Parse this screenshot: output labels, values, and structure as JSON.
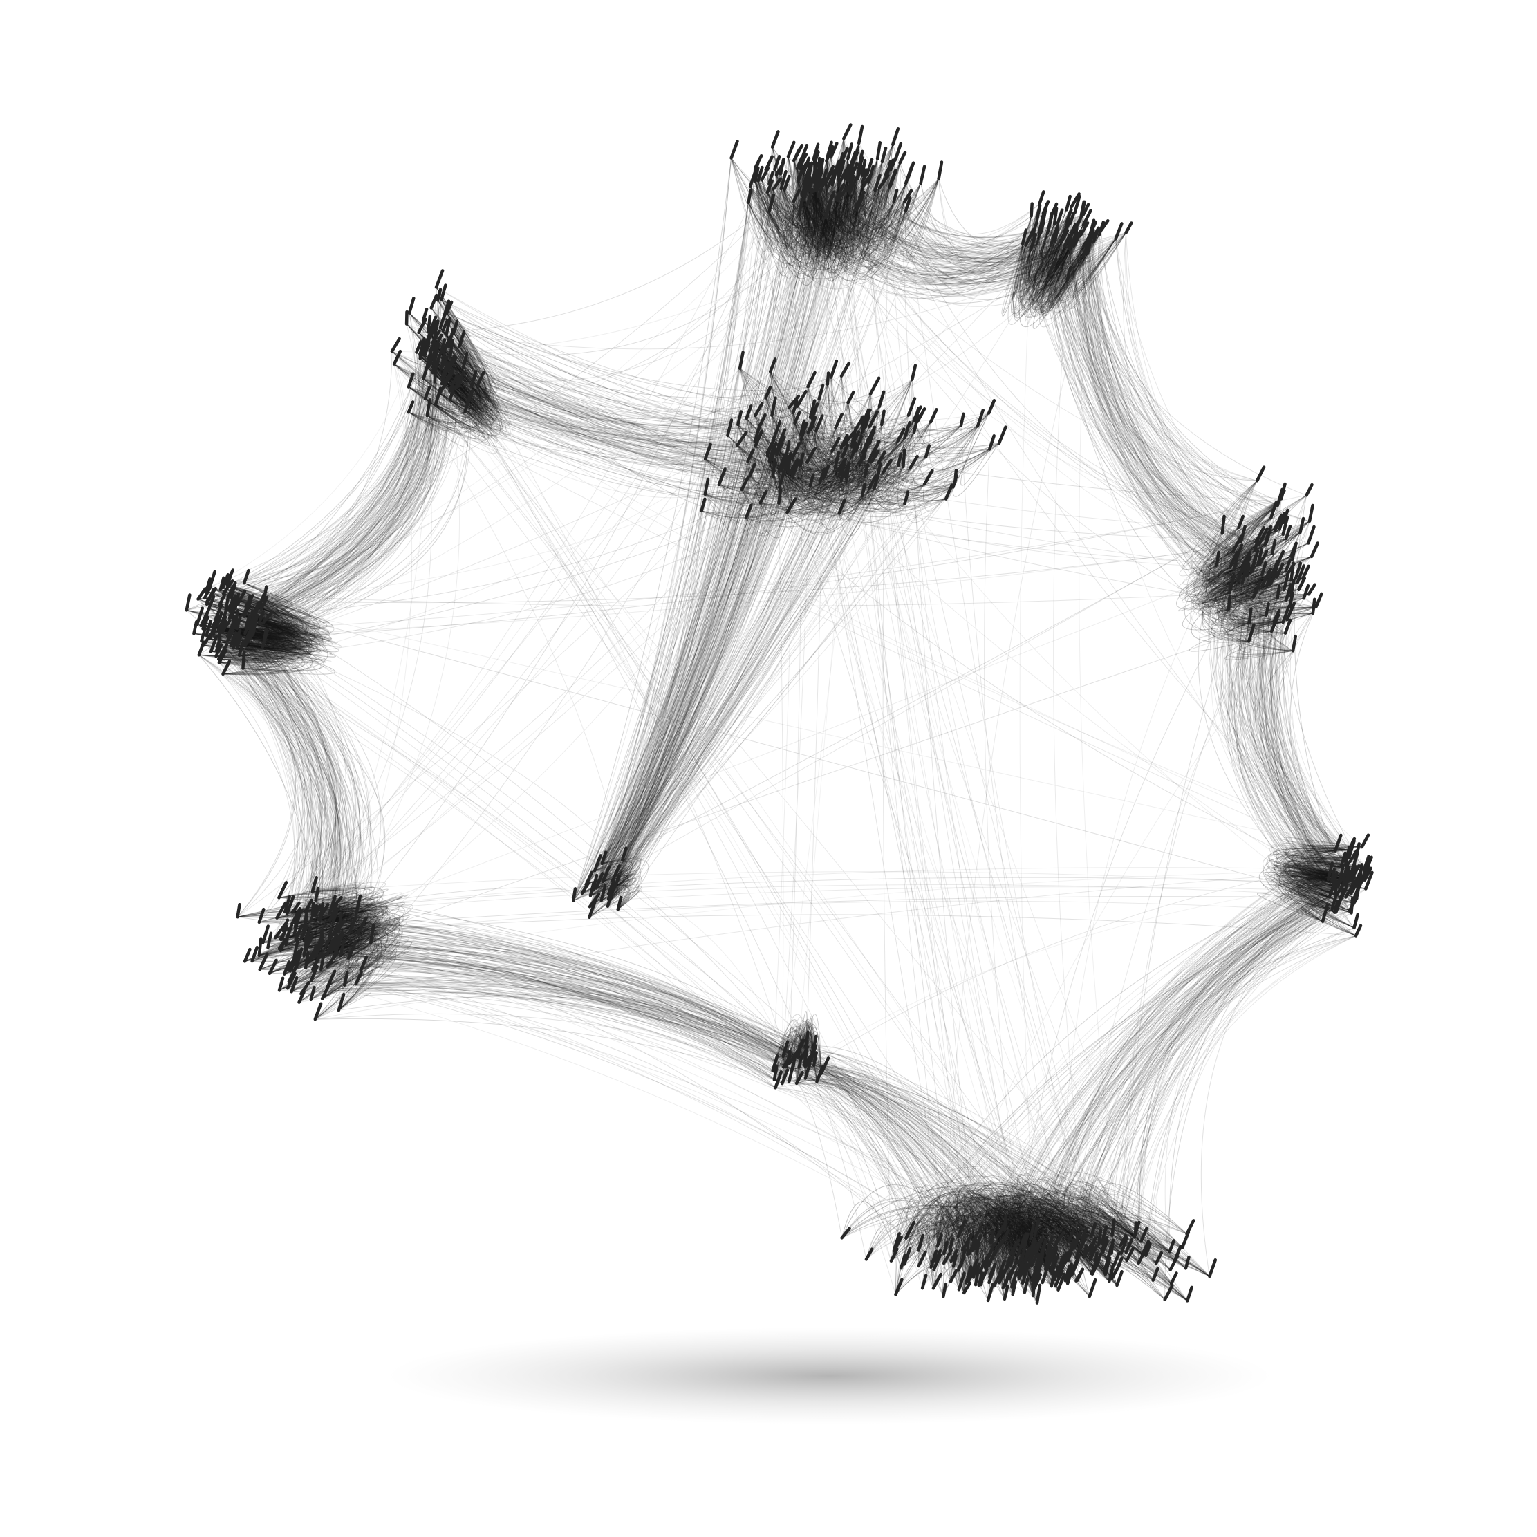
{
  "scene": {
    "background_color": "#ffffff",
    "node_color": "#262626",
    "edge_color": "#1a1a1a",
    "shadow_color": "#555555",
    "style": "3d wireframe ring network with rod-like nodes",
    "clusters": [
      {
        "name": "top"
      },
      {
        "name": "top-right"
      },
      {
        "name": "right"
      },
      {
        "name": "bottom-right"
      },
      {
        "name": "bottom"
      },
      {
        "name": "bottom-center"
      },
      {
        "name": "left-bottom"
      },
      {
        "name": "left"
      },
      {
        "name": "upper-left"
      },
      {
        "name": "center-left-small"
      },
      {
        "name": "inner-upper"
      }
    ]
  }
}
